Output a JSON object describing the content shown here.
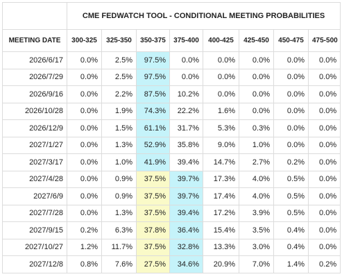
{
  "table": {
    "title": "CME FEDWATCH TOOL - CONDITIONAL MEETING PROBABILITIES",
    "columns": [
      "MEETING DATE",
      "300-325",
      "325-350",
      "350-375",
      "375-400",
      "400-425",
      "425-450",
      "450-475",
      "475-500"
    ],
    "rows": [
      {
        "cells": [
          "2026/6/17",
          "0.0%",
          "2.5%",
          "97.5%",
          "0.0%",
          "0.0%",
          "0.0%",
          "0.0%",
          "0.0%"
        ],
        "fills": [
          null,
          null,
          null,
          "#c5f3fa",
          null,
          null,
          null,
          null,
          null
        ]
      },
      {
        "cells": [
          "2026/7/29",
          "0.0%",
          "2.5%",
          "97.5%",
          "0.0%",
          "0.0%",
          "0.0%",
          "0.0%",
          "0.0%"
        ],
        "fills": [
          null,
          null,
          null,
          "#c5f3fa",
          null,
          null,
          null,
          null,
          null
        ]
      },
      {
        "cells": [
          "2026/9/16",
          "0.0%",
          "2.2%",
          "87.5%",
          "10.2%",
          "0.0%",
          "0.0%",
          "0.0%",
          "0.0%"
        ],
        "fills": [
          null,
          null,
          null,
          "#c5f3fa",
          null,
          null,
          null,
          null,
          null
        ]
      },
      {
        "cells": [
          "2026/10/28",
          "0.0%",
          "1.9%",
          "74.3%",
          "22.2%",
          "1.6%",
          "0.0%",
          "0.0%",
          "0.0%"
        ],
        "fills": [
          null,
          null,
          null,
          "#c5f3fa",
          null,
          null,
          null,
          null,
          null
        ]
      },
      {
        "cells": [
          "2026/12/9",
          "0.0%",
          "1.5%",
          "61.1%",
          "31.7%",
          "5.3%",
          "0.3%",
          "0.0%",
          "0.0%"
        ],
        "fills": [
          null,
          null,
          null,
          "#c5f3fa",
          null,
          null,
          null,
          null,
          null
        ]
      },
      {
        "cells": [
          "2027/1/27",
          "0.0%",
          "1.3%",
          "52.9%",
          "35.8%",
          "9.0%",
          "1.0%",
          "0.0%",
          "0.0%"
        ],
        "fills": [
          null,
          null,
          null,
          "#c5f3fa",
          null,
          null,
          null,
          null,
          null
        ]
      },
      {
        "cells": [
          "2027/3/17",
          "0.0%",
          "1.0%",
          "41.9%",
          "39.4%",
          "14.7%",
          "2.7%",
          "0.2%",
          "0.0%"
        ],
        "fills": [
          null,
          null,
          null,
          "#c5f3fa",
          null,
          null,
          null,
          null,
          null
        ]
      },
      {
        "cells": [
          "2027/4/28",
          "0.0%",
          "0.9%",
          "37.5%",
          "39.7%",
          "17.3%",
          "4.0%",
          "0.5%",
          "0.0%"
        ],
        "fills": [
          null,
          null,
          null,
          "#fafac8",
          "#c5f3fa",
          null,
          null,
          null,
          null
        ]
      },
      {
        "cells": [
          "2027/6/9",
          "0.0%",
          "0.9%",
          "37.5%",
          "39.7%",
          "17.4%",
          "4.0%",
          "0.5%",
          "0.0%"
        ],
        "fills": [
          null,
          null,
          null,
          "#fafac8",
          "#c5f3fa",
          null,
          null,
          null,
          null
        ]
      },
      {
        "cells": [
          "2027/7/28",
          "0.0%",
          "1.3%",
          "37.5%",
          "39.4%",
          "17.2%",
          "3.9%",
          "0.5%",
          "0.0%"
        ],
        "fills": [
          null,
          null,
          null,
          "#fafac8",
          "#c5f3fa",
          null,
          null,
          null,
          null
        ]
      },
      {
        "cells": [
          "2027/9/15",
          "0.2%",
          "6.3%",
          "37.8%",
          "36.4%",
          "15.4%",
          "3.5%",
          "0.4%",
          "0.0%"
        ],
        "fills": [
          null,
          null,
          null,
          "#fafac8",
          "#c5f3fa",
          null,
          null,
          null,
          null
        ]
      },
      {
        "cells": [
          "2027/10/27",
          "1.2%",
          "11.7%",
          "37.5%",
          "32.8%",
          "13.3%",
          "3.0%",
          "0.4%",
          "0.0%"
        ],
        "fills": [
          null,
          null,
          null,
          "#fafac8",
          "#c5f3fa",
          null,
          null,
          null,
          null
        ]
      },
      {
        "cells": [
          "2027/12/8",
          "0.8%",
          "7.6%",
          "27.5%",
          "34.6%",
          "20.9%",
          "7.0%",
          "1.4%",
          "0.2%"
        ],
        "fills": [
          null,
          null,
          null,
          "#fafac8",
          "#c5f3fa",
          null,
          null,
          null,
          null
        ]
      }
    ]
  }
}
